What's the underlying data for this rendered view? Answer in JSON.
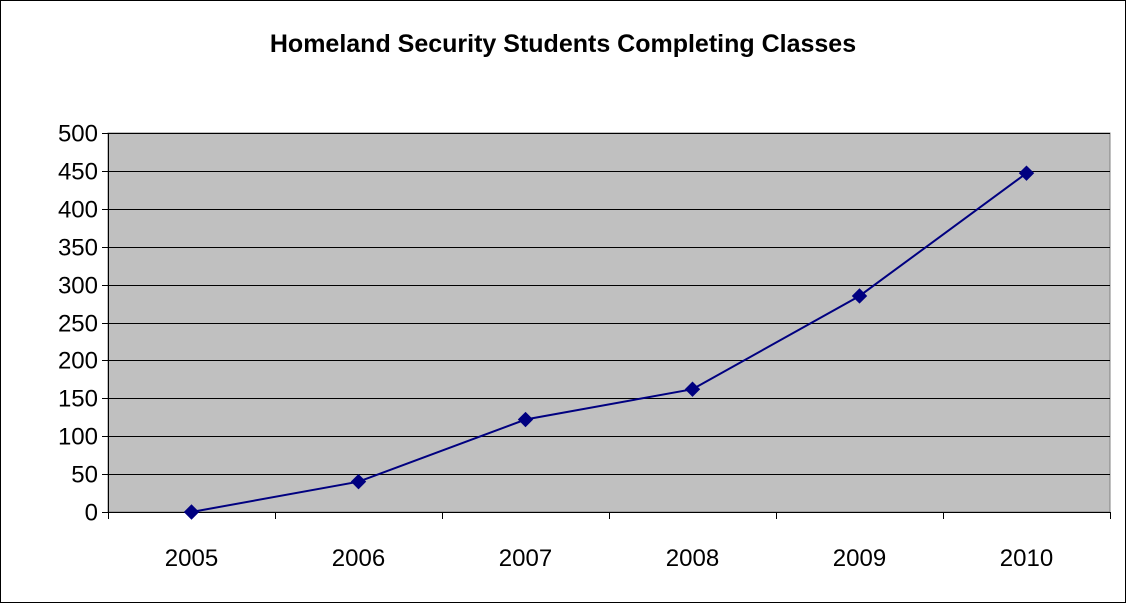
{
  "chart_data": {
    "type": "line",
    "title": "Homeland Security Students Completing Classes",
    "xlabel": "",
    "ylabel": "",
    "categories": [
      "2005",
      "2006",
      "2007",
      "2008",
      "2009",
      "2010"
    ],
    "series": [
      {
        "values": [
          0,
          40,
          122,
          162,
          285,
          447
        ]
      }
    ],
    "ylim": [
      0,
      500
    ],
    "yticks": [
      0,
      50,
      100,
      150,
      200,
      250,
      300,
      350,
      400,
      450,
      500
    ],
    "grid": true,
    "legend": "none",
    "colors": {
      "plot_background": "#c0c0c0",
      "line": "#000080",
      "marker": "#000080",
      "gridline": "#000000"
    }
  }
}
